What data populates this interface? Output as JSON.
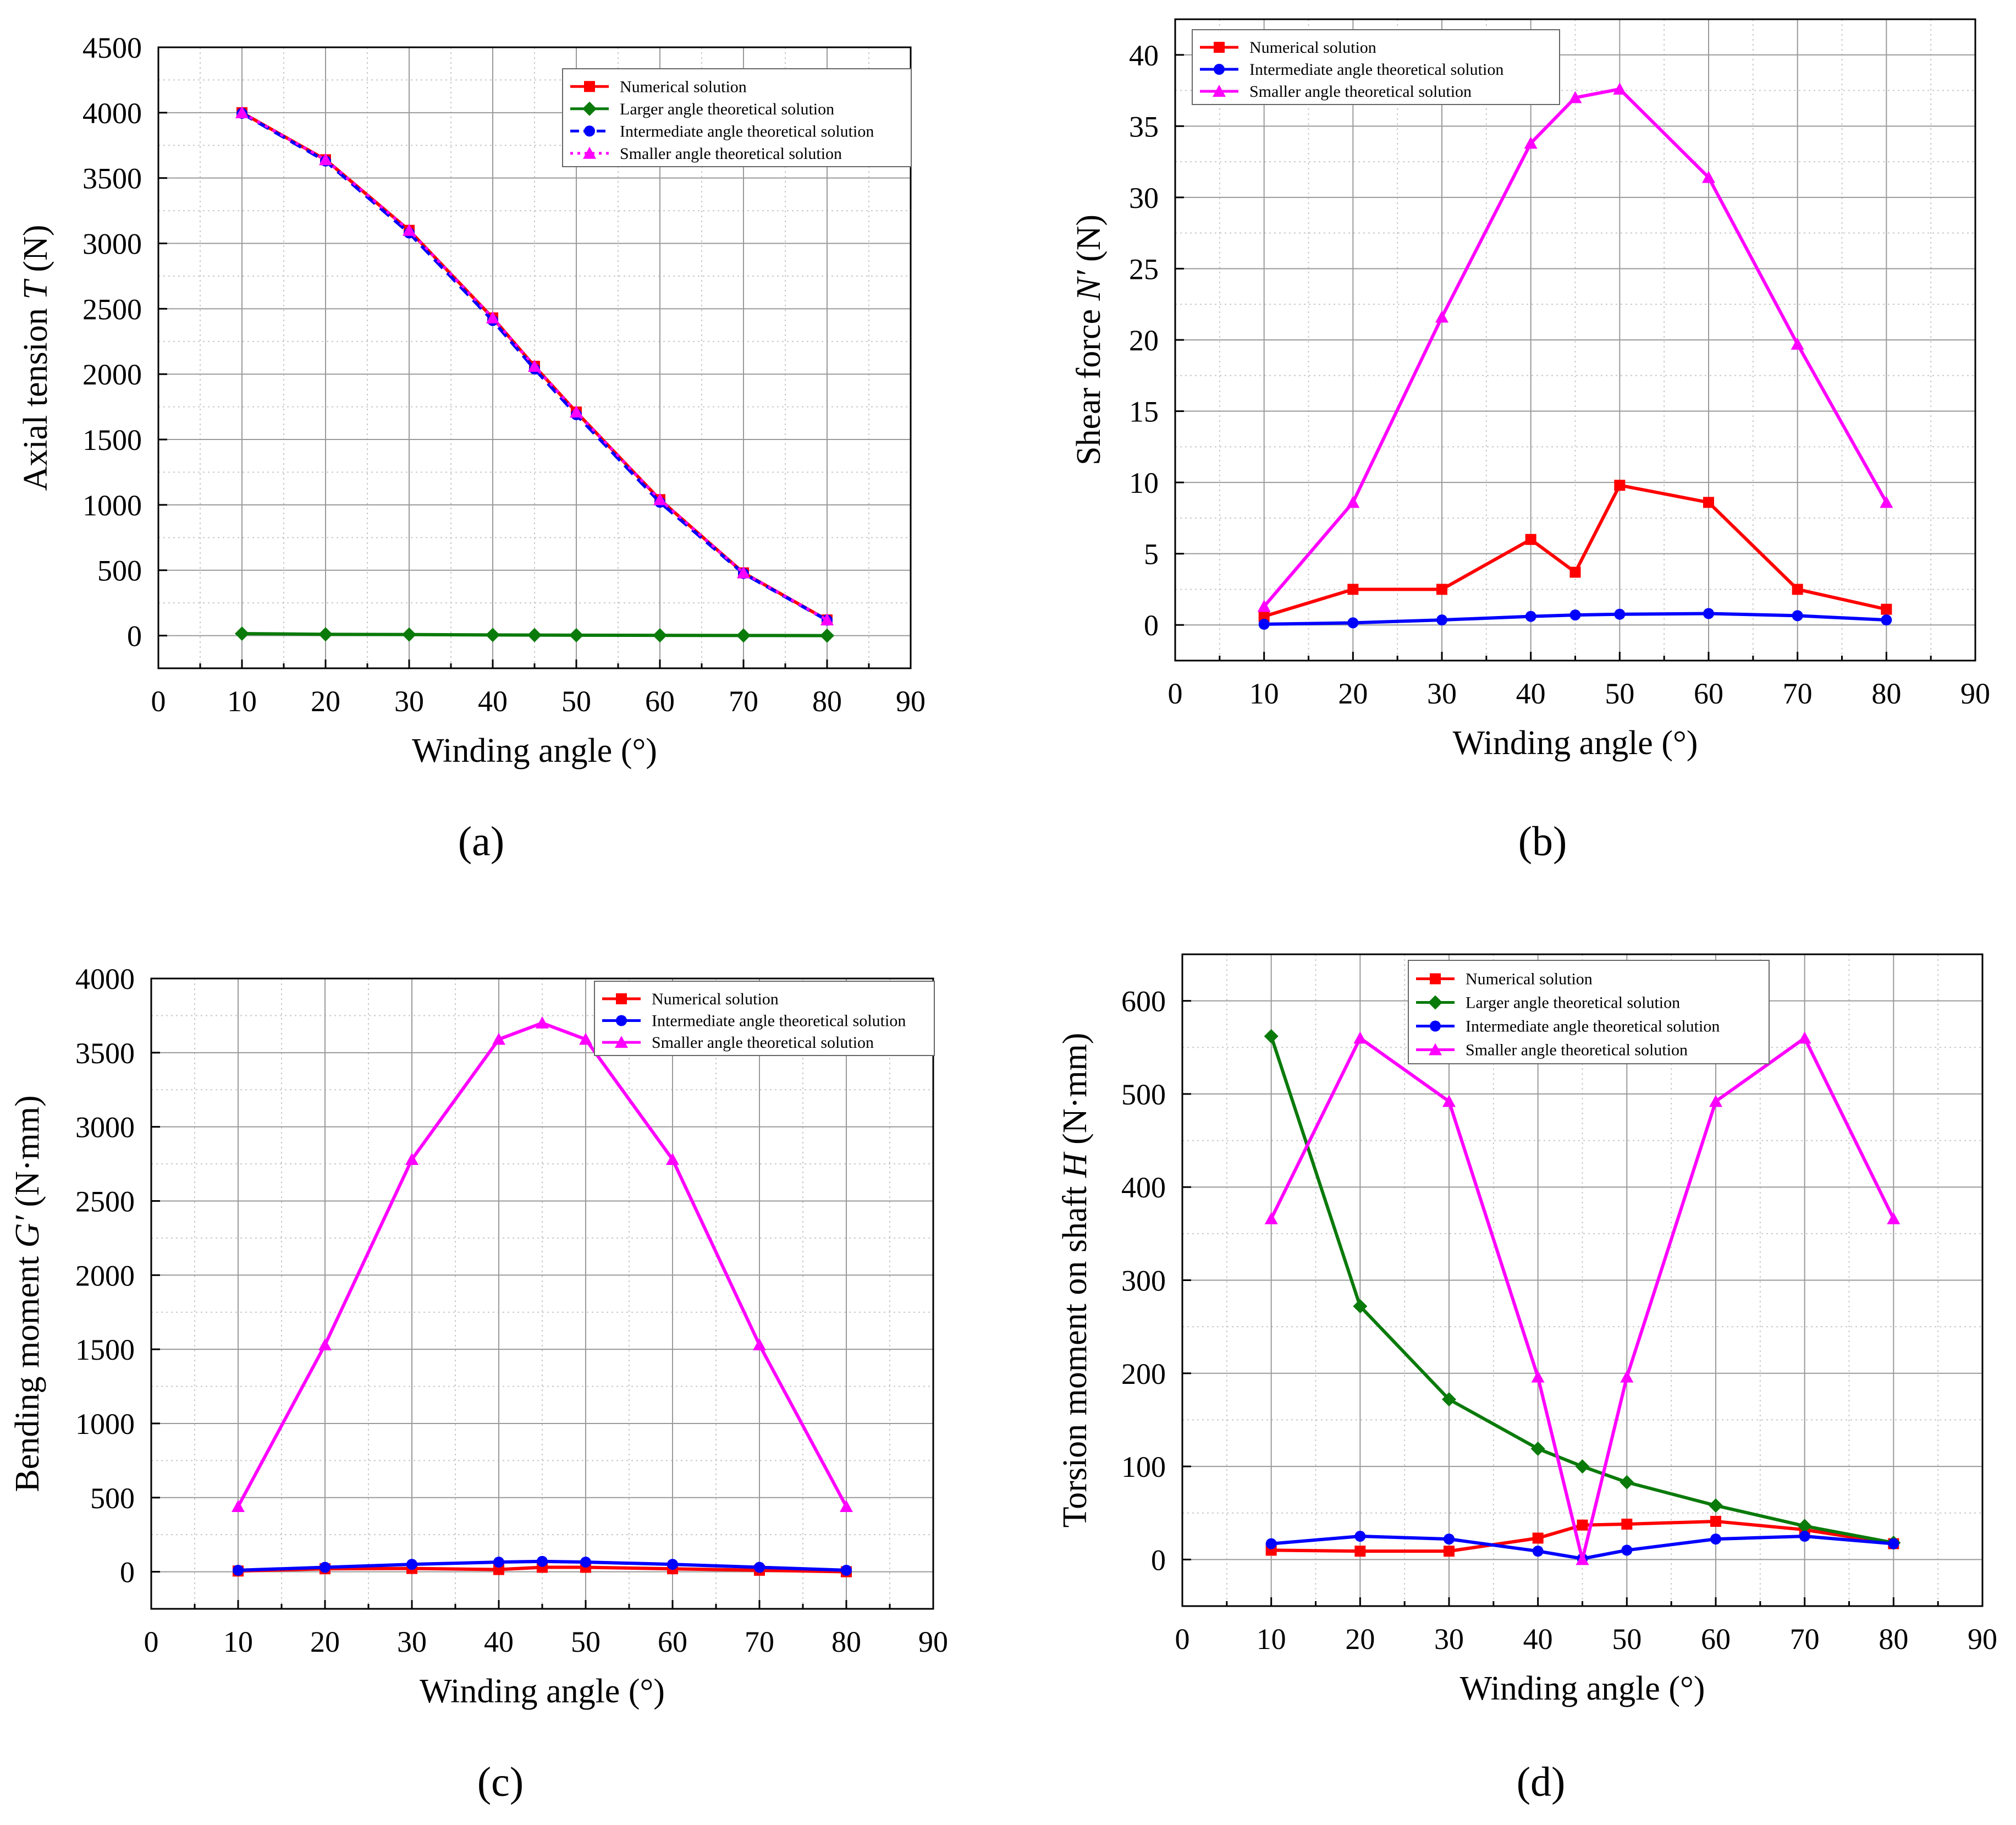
{
  "colors": {
    "numerical": "#ff0000",
    "larger": "#0a7a0a",
    "intermediate": "#0000ff",
    "smaller": "#ff00ff",
    "grid": "#9a9a9a",
    "axis": "#000000"
  },
  "chart_data": [
    {
      "panel": "(a)",
      "type": "line",
      "title": "",
      "xlabel": "Winding angle (°)",
      "ylabel": "Axial tension",
      "ylabel_symbol": "T",
      "ylabel_unit": "(N)",
      "xlim": [
        0,
        90
      ],
      "ylim": [
        -250,
        4500
      ],
      "xticks": [
        0,
        10,
        20,
        30,
        40,
        50,
        60,
        70,
        80,
        90
      ],
      "yticks": [
        0,
        500,
        1000,
        1500,
        2000,
        2500,
        3000,
        3500,
        4000,
        4500
      ],
      "x": [
        10,
        20,
        30,
        40,
        45,
        50,
        60,
        70,
        80
      ],
      "grid": true,
      "legend_position": "top-right",
      "series": [
        {
          "name": "Numerical solution",
          "key": "numerical",
          "marker": "square",
          "dash": false,
          "values": [
            4000,
            3640,
            3100,
            2430,
            2060,
            1710,
            1040,
            480,
            120
          ]
        },
        {
          "name": "Larger angle theoretical solution",
          "key": "larger",
          "marker": "diamond",
          "dash": false,
          "values": [
            15,
            10,
            8,
            5,
            4,
            3,
            2,
            1,
            0
          ]
        },
        {
          "name": "Intermediate angle theoretical solution",
          "key": "intermediate",
          "marker": "circle",
          "dash": true,
          "values": [
            3995,
            3630,
            3080,
            2410,
            2040,
            1690,
            1020,
            475,
            118
          ]
        },
        {
          "name": "Smaller angle theoretical solution",
          "key": "smaller",
          "marker": "triangle",
          "dash": "dot",
          "values": [
            4000,
            3640,
            3100,
            2430,
            2060,
            1710,
            1040,
            480,
            120
          ]
        }
      ]
    },
    {
      "panel": "(b)",
      "type": "line",
      "title": "",
      "xlabel": "Winding angle (°)",
      "ylabel": "Shear force",
      "ylabel_symbol": "N′",
      "ylabel_unit": "(N)",
      "xlim": [
        0,
        90
      ],
      "ylim": [
        -2.5,
        42.5
      ],
      "xticks": [
        0,
        10,
        20,
        30,
        40,
        50,
        60,
        70,
        80,
        90
      ],
      "yticks": [
        0,
        5,
        10,
        15,
        20,
        25,
        30,
        35,
        40
      ],
      "x": [
        10,
        20,
        30,
        40,
        45,
        50,
        60,
        70,
        80
      ],
      "grid": true,
      "legend_position": "top-left",
      "series": [
        {
          "name": "Numerical solution",
          "key": "numerical",
          "marker": "square",
          "dash": false,
          "values": [
            0.6,
            2.5,
            2.5,
            6.0,
            3.7,
            9.8,
            8.6,
            2.5,
            1.1
          ]
        },
        {
          "name": "Intermediate angle theoretical solution",
          "key": "intermediate",
          "marker": "circle",
          "dash": false,
          "values": [
            0.05,
            0.15,
            0.35,
            0.6,
            0.7,
            0.75,
            0.8,
            0.65,
            0.35
          ]
        },
        {
          "name": "Smaller angle theoretical solution",
          "key": "smaller",
          "marker": "triangle",
          "dash": false,
          "values": [
            1.3,
            8.6,
            21.6,
            33.8,
            37.0,
            37.6,
            31.4,
            19.7,
            8.6
          ]
        }
      ]
    },
    {
      "panel": "(c)",
      "type": "line",
      "title": "",
      "xlabel": "Winding angle (°)",
      "ylabel": "Bending moment",
      "ylabel_symbol": "G′",
      "ylabel_unit": "(N·mm)",
      "xlim": [
        0,
        90
      ],
      "ylim": [
        -250,
        4000
      ],
      "xticks": [
        0,
        10,
        20,
        30,
        40,
        50,
        60,
        70,
        80,
        90
      ],
      "yticks": [
        0,
        500,
        1000,
        1500,
        2000,
        2500,
        3000,
        3500,
        4000
      ],
      "x": [
        10,
        20,
        30,
        40,
        45,
        50,
        60,
        70,
        80
      ],
      "grid": true,
      "legend_position": "top-right",
      "series": [
        {
          "name": "Numerical solution",
          "key": "numerical",
          "marker": "square",
          "dash": false,
          "values": [
            5,
            20,
            22,
            15,
            30,
            30,
            20,
            10,
            0
          ]
        },
        {
          "name": "Intermediate angle theoretical solution",
          "key": "intermediate",
          "marker": "circle",
          "dash": false,
          "values": [
            10,
            30,
            50,
            65,
            70,
            65,
            50,
            30,
            10
          ]
        },
        {
          "name": "Smaller angle theoretical solution",
          "key": "smaller",
          "marker": "triangle",
          "dash": false,
          "values": [
            440,
            1530,
            2780,
            3590,
            3700,
            3590,
            2780,
            1530,
            440
          ]
        }
      ]
    },
    {
      "panel": "(d)",
      "type": "line",
      "title": "",
      "xlabel": "Winding angle (°)",
      "ylabel": "Torsion moment on shaft",
      "ylabel_symbol": "H",
      "ylabel_unit": "(N·mm)",
      "xlim": [
        0,
        90
      ],
      "ylim": [
        -50,
        650
      ],
      "xticks": [
        0,
        10,
        20,
        30,
        40,
        50,
        60,
        70,
        80,
        90
      ],
      "yticks": [
        0,
        100,
        200,
        300,
        400,
        500,
        600
      ],
      "x": [
        10,
        20,
        30,
        40,
        45,
        50,
        60,
        70,
        80
      ],
      "grid": true,
      "legend_position": "top-center",
      "series": [
        {
          "name": "Numerical solution",
          "key": "numerical",
          "marker": "square",
          "dash": false,
          "values": [
            10,
            9,
            9,
            23,
            37,
            38,
            41,
            32,
            17
          ]
        },
        {
          "name": "Larger angle theoretical solution",
          "key": "larger",
          "marker": "diamond",
          "dash": false,
          "values": [
            562,
            272,
            172,
            119,
            100,
            83,
            58,
            36,
            18
          ]
        },
        {
          "name": "Intermediate angle theoretical solution",
          "key": "intermediate",
          "marker": "circle",
          "dash": false,
          "values": [
            17,
            25,
            22,
            9,
            1,
            10,
            22,
            25,
            17
          ]
        },
        {
          "name": "Smaller angle theoretical solution",
          "key": "smaller",
          "marker": "triangle",
          "dash": false,
          "values": [
            366,
            560,
            492,
            196,
            0,
            196,
            492,
            560,
            366
          ]
        }
      ]
    }
  ]
}
